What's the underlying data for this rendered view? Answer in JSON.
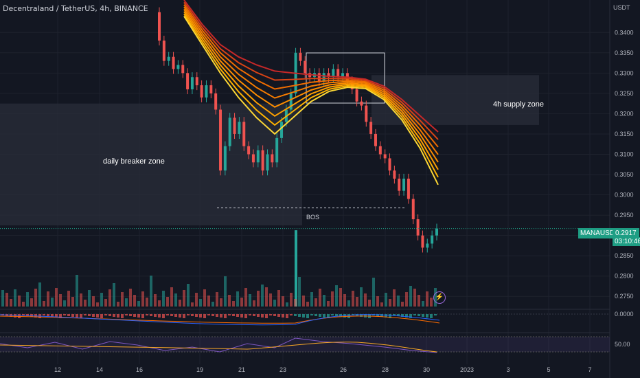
{
  "title": "Decentraland / TetherUS, 4h, BINANCE",
  "price_tag": {
    "symbol": "MANAUSDT",
    "price": "0.2917",
    "timer": "03:10:46"
  },
  "annotations": {
    "daily_zone": "daily breaker zone",
    "supply_zone": "4h supply zone",
    "bos": "BOS"
  },
  "macd_label": "0.0000",
  "rsi_label": "50.00",
  "colors": {
    "bg": "#131722",
    "up": "#26a69a",
    "down": "#ef5350",
    "grid": "#1e222d",
    "zone": "#2a2e39",
    "text": "#b2b5be"
  },
  "chart_data": {
    "type": "candlestick",
    "title": "Decentraland / TetherUS, 4h, BINANCE",
    "y_unit": "USDT",
    "ylim": [
      0.2725,
      0.348
    ],
    "y_ticks": [
      "0.3400",
      "0.3350",
      "0.3300",
      "0.3250",
      "0.3200",
      "0.3150",
      "0.3100",
      "0.3050",
      "0.3000",
      "0.2950",
      "0.2900",
      "0.2850",
      "0.2800",
      "0.2750"
    ],
    "x_ticks": [
      "12",
      "14",
      "16",
      "19",
      "21",
      "23",
      "26",
      "28",
      "30",
      "2023",
      "3",
      "5",
      "7"
    ],
    "zones": [
      {
        "label": "daily breaker zone",
        "price_top": 0.3225,
        "price_bottom": 0.2925
      },
      {
        "label": "4h supply zone",
        "price_top": 0.3295,
        "price_bottom": 0.3172
      }
    ],
    "bos_level": 0.2968,
    "last_price": 0.2917,
    "candles_close": [
      0.338,
      0.333,
      0.334,
      0.331,
      0.332,
      0.33,
      0.326,
      0.329,
      0.327,
      0.324,
      0.327,
      0.325,
      0.321,
      0.306,
      0.312,
      0.319,
      0.315,
      0.318,
      0.312,
      0.31,
      0.308,
      0.311,
      0.306,
      0.31,
      0.308,
      0.314,
      0.318,
      0.321,
      0.325,
      0.335,
      0.333,
      0.33,
      0.329,
      0.33,
      0.328,
      0.33,
      0.329,
      0.331,
      0.329,
      0.33,
      0.328,
      0.326,
      0.323,
      0.322,
      0.318,
      0.315,
      0.312,
      0.31,
      0.309,
      0.306,
      0.304,
      0.301,
      0.304,
      0.299,
      0.294,
      0.29,
      0.287,
      0.288,
      0.29,
      0.2917
    ],
    "ribbon": [
      {
        "name": "EMA 1",
        "values": [
          0.348,
          0.342,
          0.337,
          0.334,
          0.332,
          0.3305,
          0.33,
          0.3296,
          0.3292,
          0.329,
          0.3285,
          0.3268,
          0.3235,
          0.3195,
          0.3155
        ]
      },
      {
        "name": "EMA 8",
        "values": [
          0.344,
          0.337,
          0.33,
          0.324,
          0.319,
          0.315,
          0.319,
          0.323,
          0.3255,
          0.3265,
          0.3262,
          0.3235,
          0.3185,
          0.3115,
          0.3025
        ]
      }
    ],
    "volume_max_label": "",
    "indicators": [
      "MACD",
      "RSI"
    ]
  }
}
